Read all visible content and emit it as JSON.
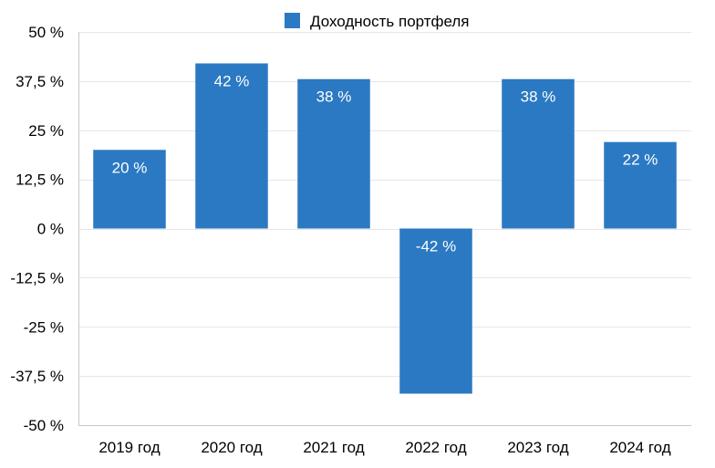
{
  "chart_data": {
    "type": "bar",
    "categories": [
      "2019 год",
      "2020 год",
      "2021 год",
      "2022 год",
      "2023 год",
      "2024 год"
    ],
    "series": [
      {
        "name": "Доходность портфеля",
        "values": [
          20,
          42,
          38,
          -42,
          38,
          22
        ],
        "data_labels": [
          "20 %",
          "42 %",
          "38 %",
          "-42 %",
          "38 %",
          "22 %"
        ],
        "color": "#2b79c2"
      }
    ],
    "ylim": [
      -50,
      50
    ],
    "y_ticks": [
      50,
      37.5,
      25,
      12.5,
      0,
      -12.5,
      -25,
      -37.5,
      -50
    ],
    "y_tick_labels": [
      "50 %",
      "37,5 %",
      "25 %",
      "12,5 %",
      "0 %",
      "-12,5 %",
      "-25 %",
      "-37,5 %",
      "-50 %"
    ],
    "grid": true,
    "legend_position": "top-center",
    "title": "",
    "xlabel": "",
    "ylabel": "",
    "colors": {
      "bar": "#2b79c2",
      "grid": "#e6e6e6",
      "axis": "#c8c8c8",
      "label_on_bar": "#ffffff"
    }
  }
}
